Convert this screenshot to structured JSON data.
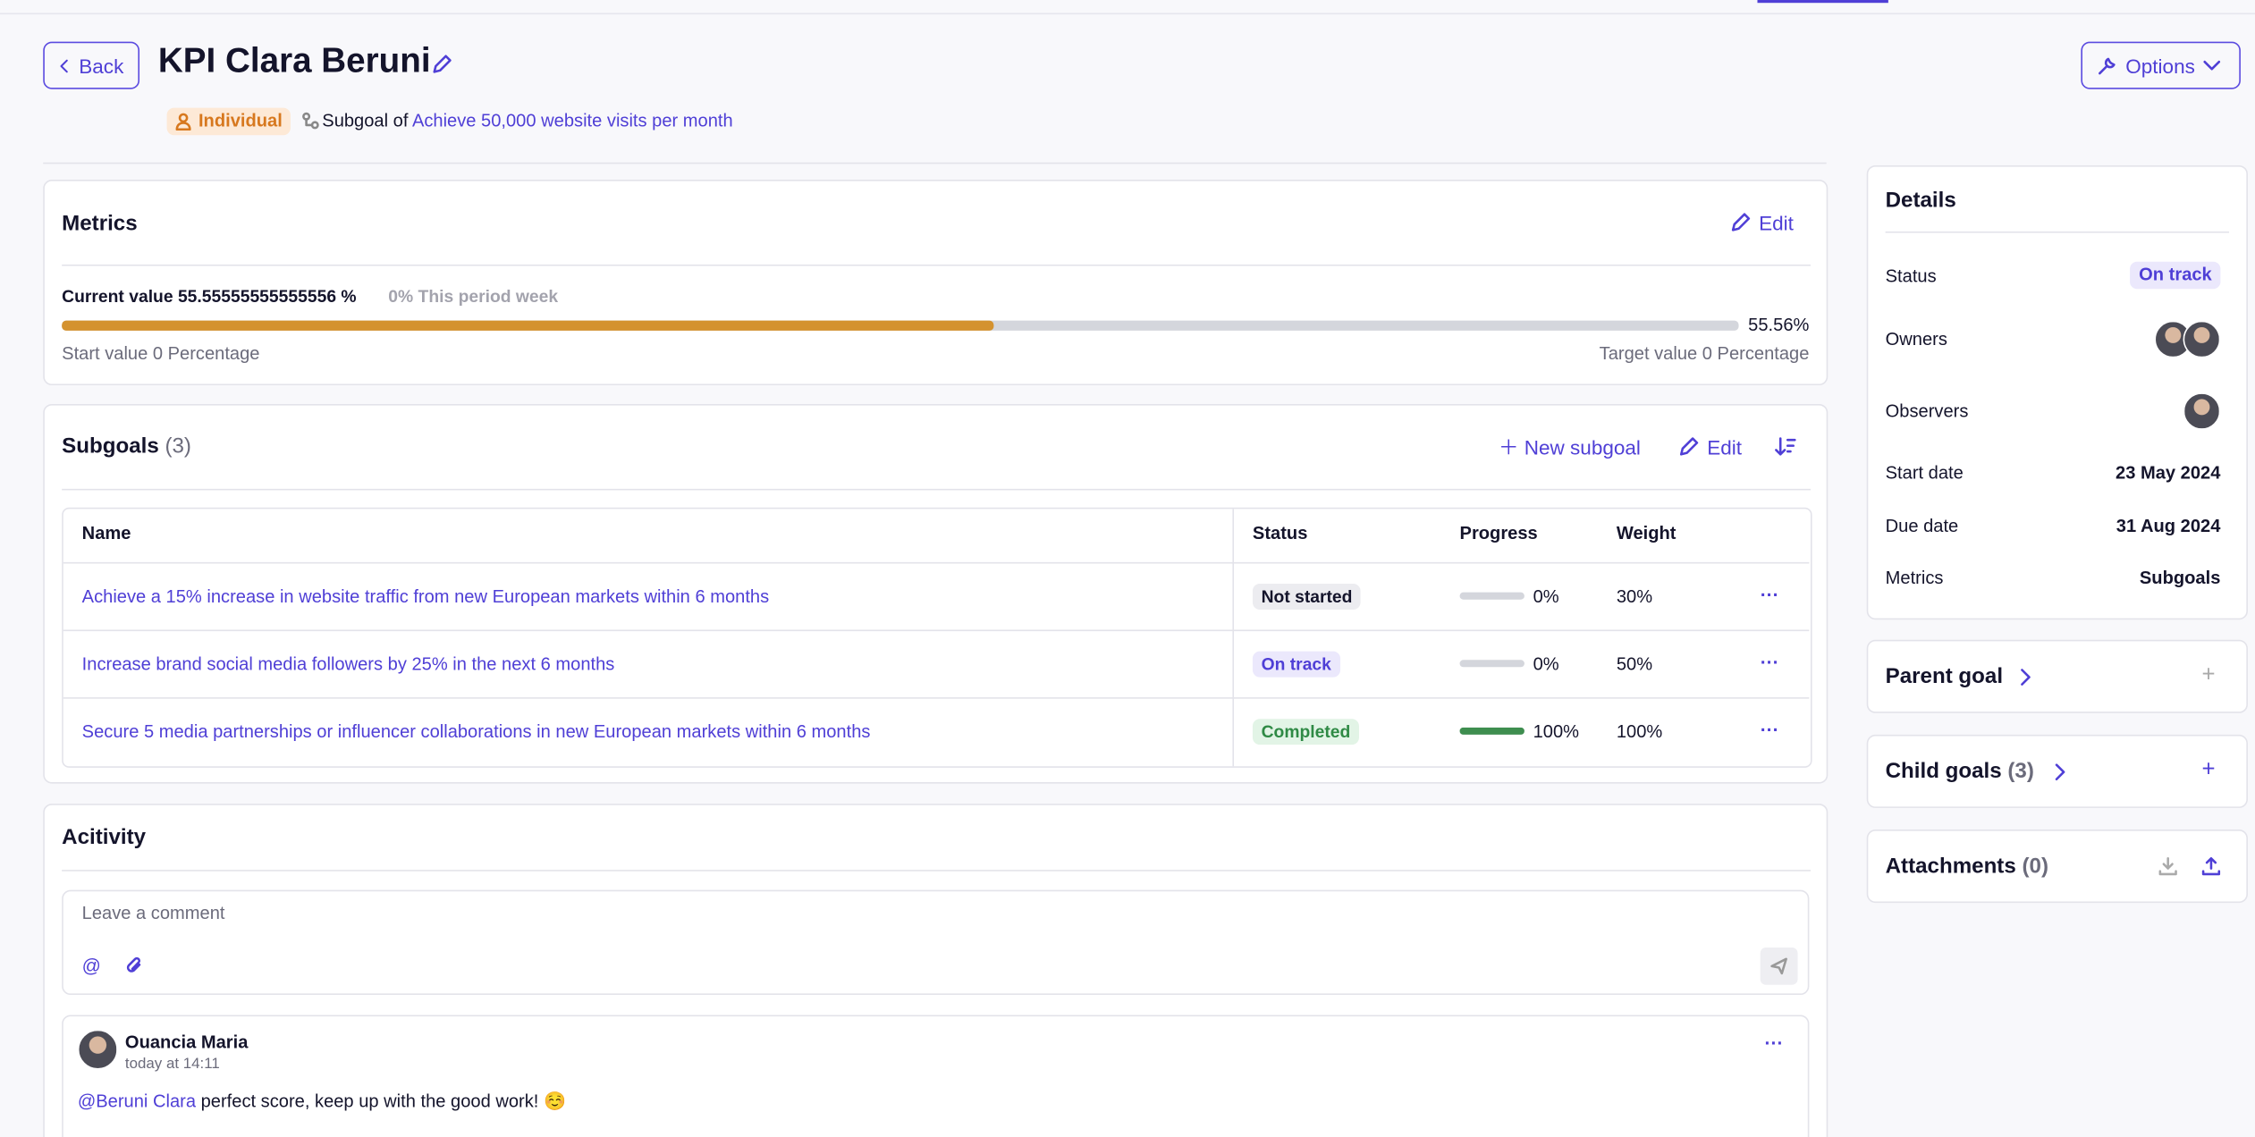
{
  "header": {
    "back": "Back",
    "title": "KPI Clara Beruni",
    "badge": "Individual",
    "subgoal_of": "Subgoal of",
    "parent_link": "Achieve 50,000 website visits per month",
    "options": "Options"
  },
  "metrics": {
    "title": "Metrics",
    "edit": "Edit",
    "current_value": "Current value 55.55555555555556 %",
    "period": "0% This period week",
    "progress": {
      "value": 55.56,
      "label": "55.56%"
    },
    "start": "Start value 0 Percentage",
    "target": "Target value 0 Percentage"
  },
  "subgoals": {
    "title": "Subgoals",
    "count": "(3)",
    "new": "New subgoal",
    "edit": "Edit",
    "columns": [
      "Name",
      "Status",
      "Progress",
      "Weight"
    ],
    "rows": [
      {
        "name": "Achieve a 15% increase in website traffic from new European markets within 6 months",
        "status": "Not started",
        "progress": {
          "value": 0,
          "label": "0%"
        },
        "weight": "30%"
      },
      {
        "name": "Increase brand social media followers by 25% in the next 6 months",
        "status": "On track",
        "progress": {
          "value": 0,
          "label": "0%"
        },
        "weight": "50%"
      },
      {
        "name": "Secure 5 media partnerships or influencer collaborations in new European markets within 6 months",
        "status": "Completed",
        "progress": {
          "value": 100,
          "label": "100%"
        },
        "weight": "100%"
      }
    ]
  },
  "activity": {
    "title": "Acitivity",
    "placeholder": "Leave a comment",
    "comment": {
      "author": "Ouancia Maria",
      "time": "today at 14:11",
      "mention": "@Beruni Clara",
      "text": "perfect score, keep up with the good work! ☺️"
    }
  },
  "details": {
    "title": "Details",
    "rows": [
      [
        "Status",
        "On track"
      ],
      [
        "Owners"
      ],
      [
        "Observers"
      ],
      [
        "Start date",
        "23 May 2024"
      ],
      [
        "Due date",
        "31 Aug 2024"
      ],
      [
        "Metrics",
        "Subgoals"
      ]
    ]
  },
  "sidebar": {
    "parent_goal": "Parent goal",
    "child_goals": "Child goals",
    "child_count": "(3)",
    "attachments": "Attachments",
    "attachments_count": "(0)"
  }
}
